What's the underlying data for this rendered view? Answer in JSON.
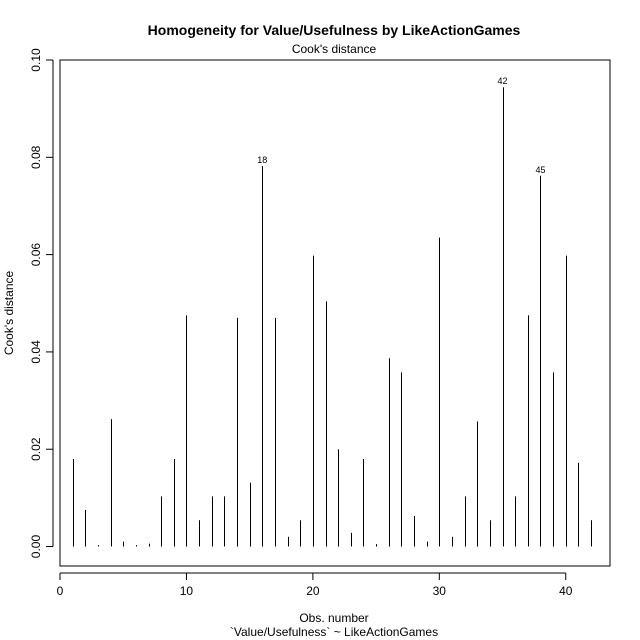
{
  "chart_data": {
    "type": "bar",
    "title": "Homogeneity for Value/Usefulness by LikeActionGames",
    "subtitle": "Cook's distance",
    "xlabel": "Obs. number",
    "xlabel2": "`Value/Usefulness` ~ LikeActionGames",
    "ylabel": "Cook's distance",
    "xlim": [
      0,
      43.5
    ],
    "ylim": [
      -0.004,
      0.1
    ],
    "x_ticks": [
      0,
      10,
      20,
      30,
      40
    ],
    "y_ticks": [
      0.0,
      0.02,
      0.04,
      0.06,
      0.08,
      0.1
    ],
    "y_tick_labels": [
      "0.00",
      "0.02",
      "0.04",
      "0.06",
      "0.08",
      "0.10"
    ],
    "grid": false,
    "x": [
      1,
      2,
      3,
      4,
      5,
      6,
      7,
      8,
      9,
      10,
      11,
      12,
      13,
      14,
      15,
      16,
      17,
      18,
      19,
      20,
      21,
      22,
      23,
      24,
      25,
      26,
      27,
      28,
      29,
      30,
      31,
      32,
      33,
      34,
      35,
      36,
      37,
      38,
      39,
      40,
      41,
      42
    ],
    "values": [
      0.018,
      0.0075,
      0.0003,
      0.0262,
      0.001,
      0.0003,
      0.0006,
      0.0103,
      0.018,
      0.0475,
      0.0054,
      0.0103,
      0.0103,
      0.047,
      0.0131,
      0.0782,
      0.047,
      0.002,
      0.0054,
      0.0598,
      0.0504,
      0.02,
      0.0028,
      0.018,
      0.0005,
      0.0387,
      0.0358,
      0.0063,
      0.001,
      0.0635,
      0.002,
      0.0103,
      0.0257,
      0.0054,
      0.0944,
      0.0103,
      0.0475,
      0.0762,
      0.0358,
      0.0598,
      0.0172,
      0.0054
    ],
    "point_labels": [
      {
        "x": 16,
        "text": "18"
      },
      {
        "x": 35,
        "text": "42"
      },
      {
        "x": 38,
        "text": "45"
      }
    ]
  }
}
